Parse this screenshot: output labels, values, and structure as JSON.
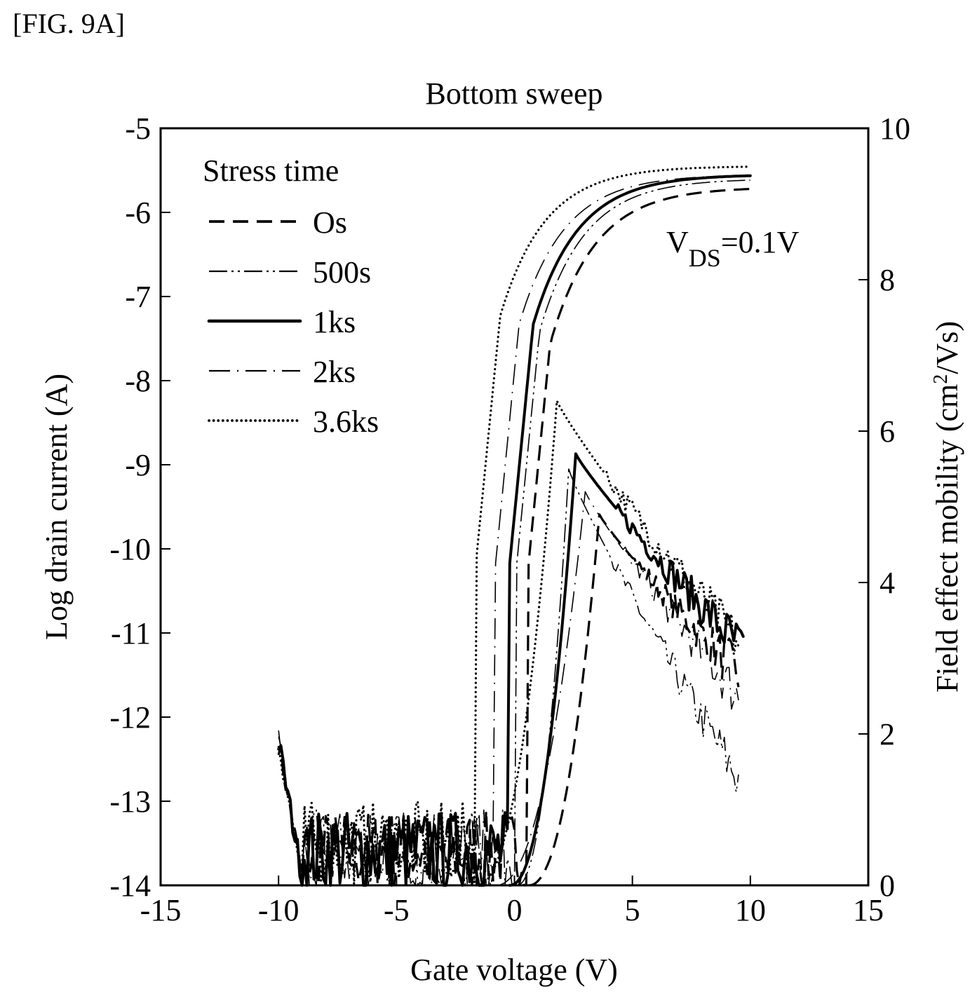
{
  "figure_label": "[FIG. 9A]",
  "chart_data": {
    "type": "line",
    "title": "Bottom sweep",
    "xlabel": "Gate voltage (V)",
    "ylabel": "Log drain current (A)",
    "y2label_main": "Field effect mobility (cm",
    "y2label_sup": "2",
    "y2label_tail": "/Vs)",
    "xlim": [
      -15,
      15
    ],
    "ylim": [
      -14,
      -5
    ],
    "y2lim": [
      0,
      10
    ],
    "xticks": [
      -15,
      -10,
      -5,
      0,
      5,
      10,
      15
    ],
    "yticks": [
      -5,
      -6,
      -7,
      -8,
      -9,
      -10,
      -11,
      -12,
      -13,
      -14
    ],
    "y2ticks": [
      10,
      8,
      6,
      4,
      2,
      0
    ],
    "grid": false,
    "legend": {
      "title": "Stress time",
      "placement": "top-left",
      "entries": [
        "Os",
        "500s",
        "1ks",
        "2ks",
        "3.6ks"
      ]
    },
    "annotation": {
      "main": "V",
      "sub": "DS",
      "tail": "=0.1V"
    },
    "series": [
      {
        "name": "Os",
        "style": "dashed",
        "transfer_curve": {
          "vth_V": 2.0,
          "off_log_current": -13.6,
          "on_log_current_at_10V": -5.7,
          "v_range": [
            -10,
            10.2
          ]
        },
        "mobility_curve": {
          "peak_V": 3.6,
          "peak_mobility": 4.9,
          "end_V": 9.5,
          "end_mobility": 2.8,
          "noisy_tail": true
        }
      },
      {
        "name": "500s",
        "style": "dash-dot-dot",
        "transfer_curve": {
          "vth_V": 1.5,
          "off_log_current": -13.6,
          "on_log_current_at_10V": -5.6,
          "v_range": [
            -10,
            10.0
          ]
        },
        "mobility_curve": {
          "peak_V": 2.3,
          "peak_mobility": 5.5,
          "end_V": 9.5,
          "end_mobility": 1.4,
          "noisy_tail": true
        }
      },
      {
        "name": "1ks",
        "style": "solid-thick",
        "transfer_curve": {
          "vth_V": 1.2,
          "off_log_current": -13.6,
          "on_log_current_at_10V": -5.55,
          "v_range": [
            -10,
            10.0
          ]
        },
        "mobility_curve": {
          "peak_V": 2.6,
          "peak_mobility": 5.7,
          "end_V": 9.7,
          "end_mobility": 3.1,
          "noisy_tail": true
        }
      },
      {
        "name": "2ks",
        "style": "long-dash-dot",
        "transfer_curve": {
          "vth_V": 0.6,
          "off_log_current": -13.6,
          "on_log_current_at_10V": -5.55,
          "v_range": [
            -10,
            10.0
          ]
        },
        "mobility_curve": {
          "peak_V": 3.0,
          "peak_mobility": 5.2,
          "end_V": 9.5,
          "end_mobility": 2.5,
          "noisy_tail": true
        }
      },
      {
        "name": "3.6ks",
        "style": "dotted",
        "transfer_curve": {
          "vth_V": -0.2,
          "off_log_current": -13.5,
          "on_log_current_at_10V": -5.45,
          "v_range": [
            -10,
            10.0
          ]
        },
        "mobility_curve": {
          "peak_V": 1.8,
          "peak_mobility": 6.4,
          "end_V": 9.5,
          "end_mobility": 3.2,
          "noisy_tail": true
        }
      }
    ]
  }
}
